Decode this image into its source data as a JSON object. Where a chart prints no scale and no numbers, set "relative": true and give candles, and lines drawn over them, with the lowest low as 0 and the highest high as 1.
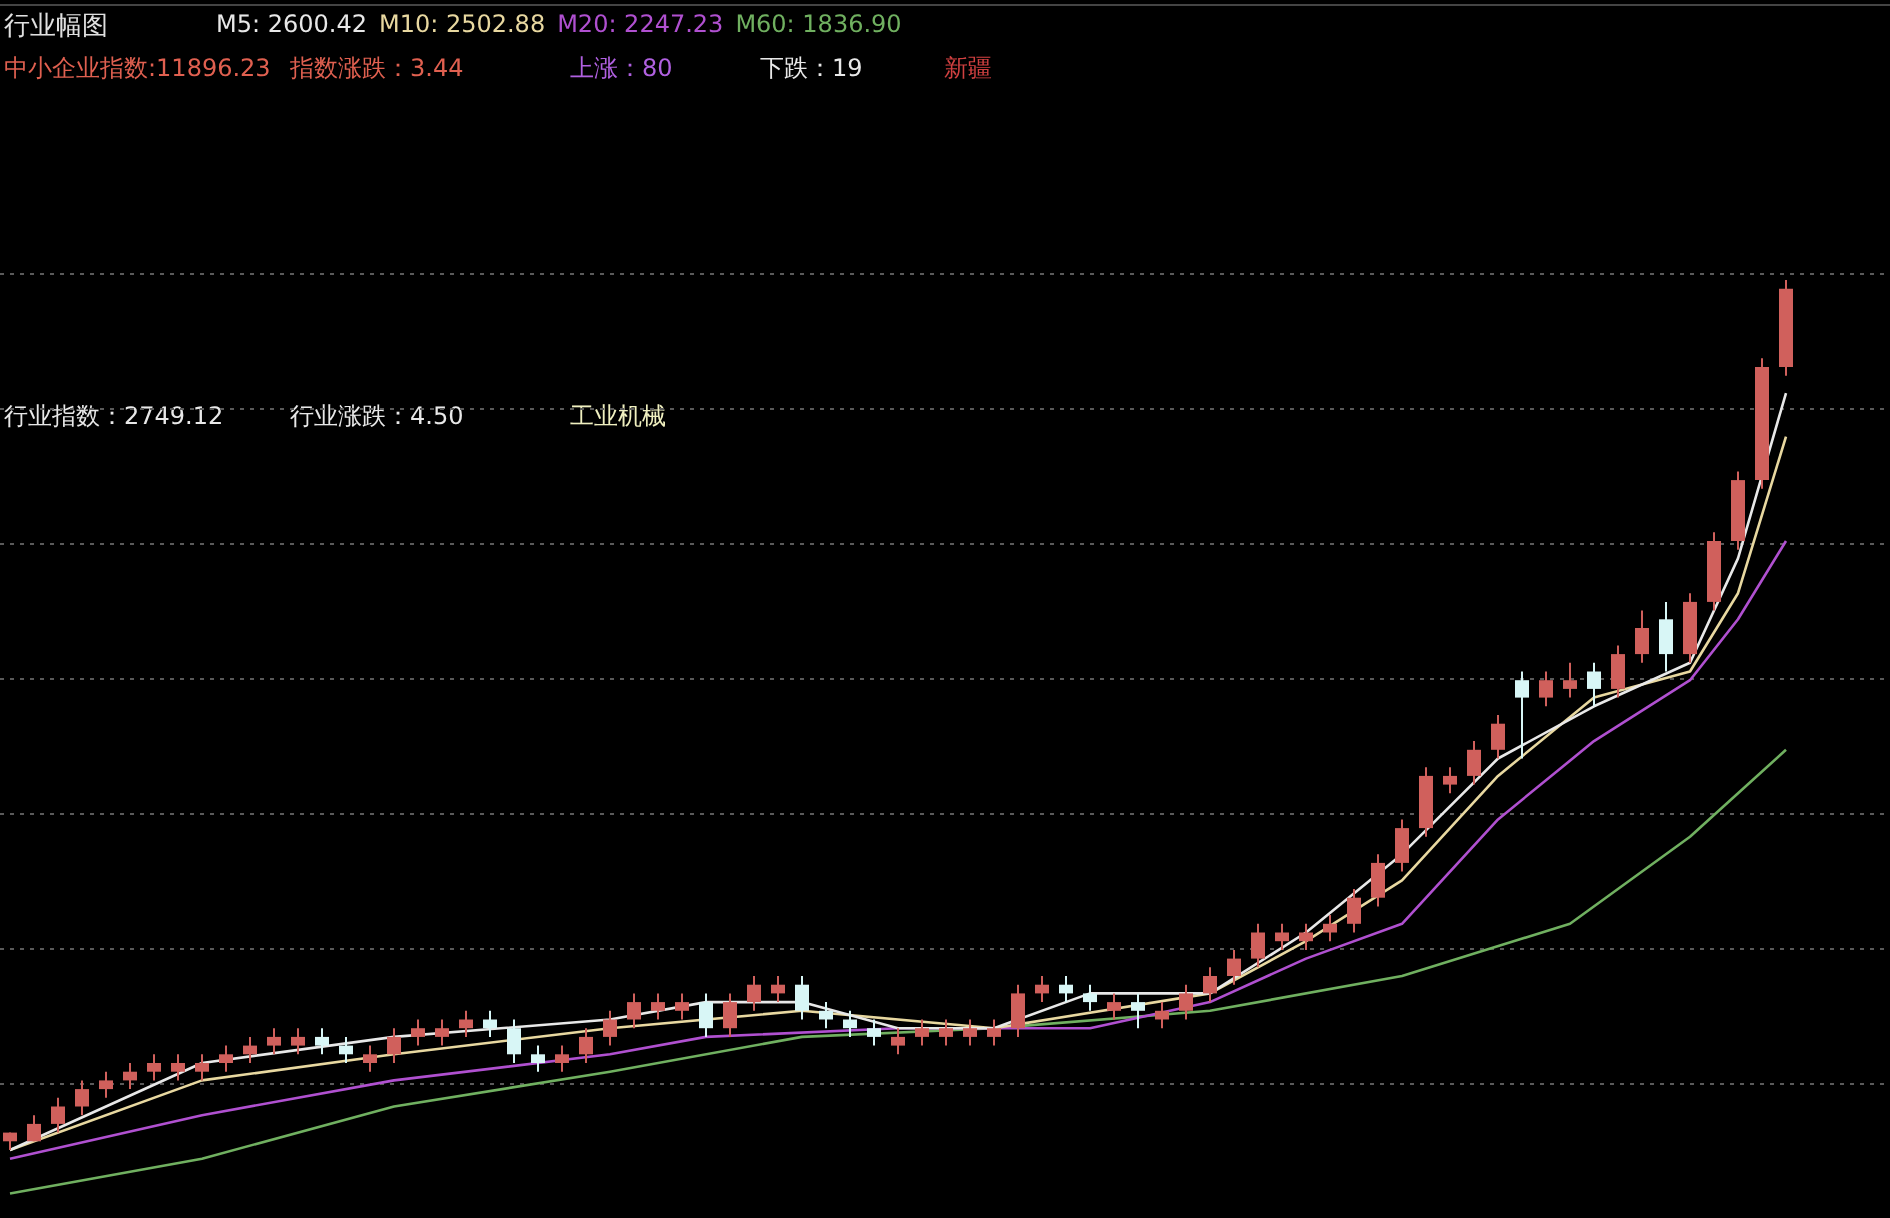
{
  "chart_data": {
    "type": "candlestick",
    "title": "行业幅图",
    "relative": true,
    "grid": "y",
    "categories": [
      null,
      null,
      null,
      null,
      null,
      null,
      null,
      null,
      null,
      null,
      null,
      null,
      null,
      null,
      null,
      null,
      null,
      null,
      null,
      null,
      null,
      null,
      null,
      null,
      null,
      null,
      null,
      null,
      null,
      null,
      null,
      null,
      null,
      null,
      null,
      null,
      null,
      null,
      null,
      null,
      null,
      null,
      null,
      null,
      null,
      null,
      null,
      null,
      null,
      null,
      null,
      null,
      null,
      null,
      null,
      null,
      null,
      null,
      null,
      null,
      null,
      null,
      null,
      null,
      null,
      null,
      null,
      null,
      null,
      null,
      null,
      null,
      null,
      null,
      null
    ],
    "ohlc": [
      [
        0.01,
        0.02,
        0,
        0.02
      ],
      [
        0.01,
        0.04,
        0.01,
        0.03
      ],
      [
        0.03,
        0.06,
        0.02,
        0.05
      ],
      [
        0.05,
        0.08,
        0.04,
        0.07
      ],
      [
        0.07,
        0.09,
        0.06,
        0.08
      ],
      [
        0.08,
        0.1,
        0.07,
        0.09
      ],
      [
        0.09,
        0.11,
        0.08,
        0.1
      ],
      [
        0.09,
        0.11,
        0.08,
        0.1
      ],
      [
        0.09,
        0.11,
        0.08,
        0.1
      ],
      [
        0.1,
        0.12,
        0.09,
        0.11
      ],
      [
        0.11,
        0.13,
        0.1,
        0.12
      ],
      [
        0.12,
        0.14,
        0.11,
        0.13
      ],
      [
        0.12,
        0.14,
        0.11,
        0.13
      ],
      [
        0.13,
        0.14,
        0.11,
        0.12
      ],
      [
        0.12,
        0.13,
        0.1,
        0.11
      ],
      [
        0.1,
        0.12,
        0.09,
        0.11
      ],
      [
        0.11,
        0.14,
        0.1,
        0.13
      ],
      [
        0.13,
        0.15,
        0.12,
        0.14
      ],
      [
        0.13,
        0.15,
        0.12,
        0.14
      ],
      [
        0.14,
        0.16,
        0.13,
        0.15
      ],
      [
        0.15,
        0.16,
        0.13,
        0.14
      ],
      [
        0.14,
        0.15,
        0.1,
        0.11
      ],
      [
        0.11,
        0.12,
        0.09,
        0.1
      ],
      [
        0.1,
        0.12,
        0.09,
        0.11
      ],
      [
        0.11,
        0.14,
        0.1,
        0.13
      ],
      [
        0.13,
        0.16,
        0.12,
        0.15
      ],
      [
        0.15,
        0.18,
        0.14,
        0.17
      ],
      [
        0.16,
        0.18,
        0.15,
        0.17
      ],
      [
        0.16,
        0.18,
        0.15,
        0.17
      ],
      [
        0.17,
        0.18,
        0.13,
        0.14
      ],
      [
        0.14,
        0.18,
        0.13,
        0.17
      ],
      [
        0.17,
        0.2,
        0.16,
        0.19
      ],
      [
        0.18,
        0.2,
        0.17,
        0.19
      ],
      [
        0.19,
        0.2,
        0.15,
        0.16
      ],
      [
        0.16,
        0.17,
        0.14,
        0.15
      ],
      [
        0.15,
        0.16,
        0.13,
        0.14
      ],
      [
        0.14,
        0.15,
        0.12,
        0.13
      ],
      [
        0.12,
        0.14,
        0.11,
        0.13
      ],
      [
        0.13,
        0.15,
        0.12,
        0.14
      ],
      [
        0.13,
        0.15,
        0.12,
        0.14
      ],
      [
        0.13,
        0.15,
        0.12,
        0.14
      ],
      [
        0.13,
        0.15,
        0.12,
        0.14
      ],
      [
        0.14,
        0.19,
        0.13,
        0.18
      ],
      [
        0.18,
        0.2,
        0.17,
        0.19
      ],
      [
        0.19,
        0.2,
        0.17,
        0.18
      ],
      [
        0.18,
        0.19,
        0.16,
        0.17
      ],
      [
        0.16,
        0.18,
        0.15,
        0.17
      ],
      [
        0.17,
        0.18,
        0.14,
        0.16
      ],
      [
        0.15,
        0.17,
        0.14,
        0.16
      ],
      [
        0.16,
        0.19,
        0.15,
        0.18
      ],
      [
        0.18,
        0.21,
        0.17,
        0.2
      ],
      [
        0.2,
        0.23,
        0.19,
        0.22
      ],
      [
        0.22,
        0.26,
        0.21,
        0.25
      ],
      [
        0.24,
        0.26,
        0.23,
        0.25
      ],
      [
        0.24,
        0.26,
        0.23,
        0.25
      ],
      [
        0.25,
        0.27,
        0.24,
        0.26
      ],
      [
        0.26,
        0.3,
        0.25,
        0.29
      ],
      [
        0.29,
        0.34,
        0.28,
        0.33
      ],
      [
        0.33,
        0.38,
        0.32,
        0.37
      ],
      [
        0.37,
        0.44,
        0.36,
        0.43
      ],
      [
        0.42,
        0.44,
        0.41,
        0.43
      ],
      [
        0.43,
        0.47,
        0.42,
        0.46
      ],
      [
        0.46,
        0.5,
        0.45,
        0.49
      ],
      [
        0.54,
        0.55,
        0.45,
        0.52
      ],
      [
        0.52,
        0.55,
        0.51,
        0.54
      ],
      [
        0.53,
        0.56,
        0.52,
        0.54
      ],
      [
        0.55,
        0.56,
        0.51,
        0.53
      ],
      [
        0.53,
        0.58,
        0.52,
        0.57
      ],
      [
        0.57,
        0.62,
        0.56,
        0.6
      ],
      [
        0.61,
        0.63,
        0.55,
        0.57
      ],
      [
        0.57,
        0.64,
        0.56,
        0.63
      ],
      [
        0.63,
        0.71,
        0.62,
        0.7
      ],
      [
        0.7,
        0.78,
        0.69,
        0.77
      ],
      [
        0.77,
        0.91,
        0.76,
        0.9
      ],
      [
        0.9,
        1,
        0.89,
        0.99
      ]
    ],
    "series": [
      {
        "name": "M5: 2600.42",
        "type": "line",
        "color": "#e8e8e8",
        "values": [
          0,
          null,
          null,
          null,
          null,
          null,
          null,
          null,
          0.1,
          null,
          null,
          null,
          null,
          null,
          null,
          null,
          0.13,
          null,
          null,
          null,
          null,
          null,
          null,
          null,
          null,
          0.15,
          null,
          null,
          null,
          0.17,
          null,
          null,
          null,
          0.17,
          null,
          null,
          null,
          0.14,
          null,
          null,
          null,
          0.14,
          null,
          null,
          null,
          0.18,
          null,
          null,
          null,
          null,
          0.18,
          null,
          null,
          null,
          0.25,
          null,
          null,
          null,
          0.34,
          null,
          null,
          null,
          0.45,
          null,
          null,
          null,
          0.51,
          null,
          null,
          null,
          0.56,
          null,
          0.68,
          null,
          0.87
        ]
      },
      {
        "name": "M10: 2502.88",
        "type": "line",
        "color": "#e8d8a0",
        "values": [
          0,
          null,
          null,
          null,
          null,
          null,
          null,
          null,
          0.08,
          null,
          null,
          null,
          null,
          null,
          null,
          null,
          0.11,
          null,
          null,
          null,
          null,
          null,
          null,
          null,
          null,
          0.14,
          null,
          null,
          null,
          null,
          null,
          null,
          null,
          0.16,
          null,
          null,
          null,
          null,
          null,
          null,
          null,
          0.14,
          null,
          null,
          null,
          null,
          null,
          null,
          null,
          null,
          0.18,
          null,
          null,
          null,
          0.24,
          null,
          null,
          null,
          0.31,
          null,
          null,
          null,
          0.43,
          null,
          null,
          null,
          0.52,
          null,
          null,
          null,
          0.55,
          null,
          0.64,
          null,
          0.82
        ]
      },
      {
        "name": "M20: 2247.23",
        "type": "line",
        "color": "#b050d0",
        "values": [
          -0.01,
          null,
          null,
          null,
          null,
          null,
          null,
          null,
          0.04,
          null,
          null,
          null,
          null,
          null,
          null,
          null,
          0.08,
          null,
          null,
          null,
          null,
          null,
          null,
          null,
          null,
          0.11,
          null,
          null,
          null,
          0.13,
          null,
          null,
          null,
          null,
          null,
          null,
          null,
          0.14,
          null,
          null,
          null,
          null,
          null,
          null,
          null,
          0.14,
          null,
          null,
          null,
          null,
          0.17,
          null,
          null,
          null,
          0.22,
          null,
          null,
          null,
          0.26,
          null,
          null,
          null,
          0.38,
          null,
          null,
          null,
          0.47,
          null,
          null,
          null,
          0.54,
          null,
          0.61,
          null,
          0.7
        ]
      },
      {
        "name": "M60: 1836.90",
        "type": "line",
        "color": "#70b060",
        "values": [
          -0.05,
          null,
          null,
          null,
          null,
          null,
          null,
          null,
          -0.01,
          null,
          null,
          null,
          null,
          null,
          null,
          null,
          0.05,
          null,
          null,
          null,
          null,
          null,
          null,
          null,
          null,
          0.09,
          null,
          null,
          null,
          null,
          null,
          null,
          null,
          0.13,
          null,
          null,
          null,
          null,
          null,
          null,
          null,
          0.14,
          null,
          null,
          null,
          null,
          null,
          null,
          null,
          null,
          0.16,
          null,
          null,
          null,
          null,
          null,
          null,
          null,
          0.2,
          null,
          null,
          null,
          null,
          null,
          null,
          0.26,
          null,
          null,
          null,
          null,
          0.36,
          null,
          null,
          null,
          0.46
        ]
      }
    ],
    "annotations": [
      "中小企业指数:11896.23",
      "指数涨跌：3.44",
      "上涨：80",
      "下跌：19",
      "新疆",
      "行业指数：2749.12",
      "行业涨跌：4.50",
      "工业机械"
    ]
  }
}
